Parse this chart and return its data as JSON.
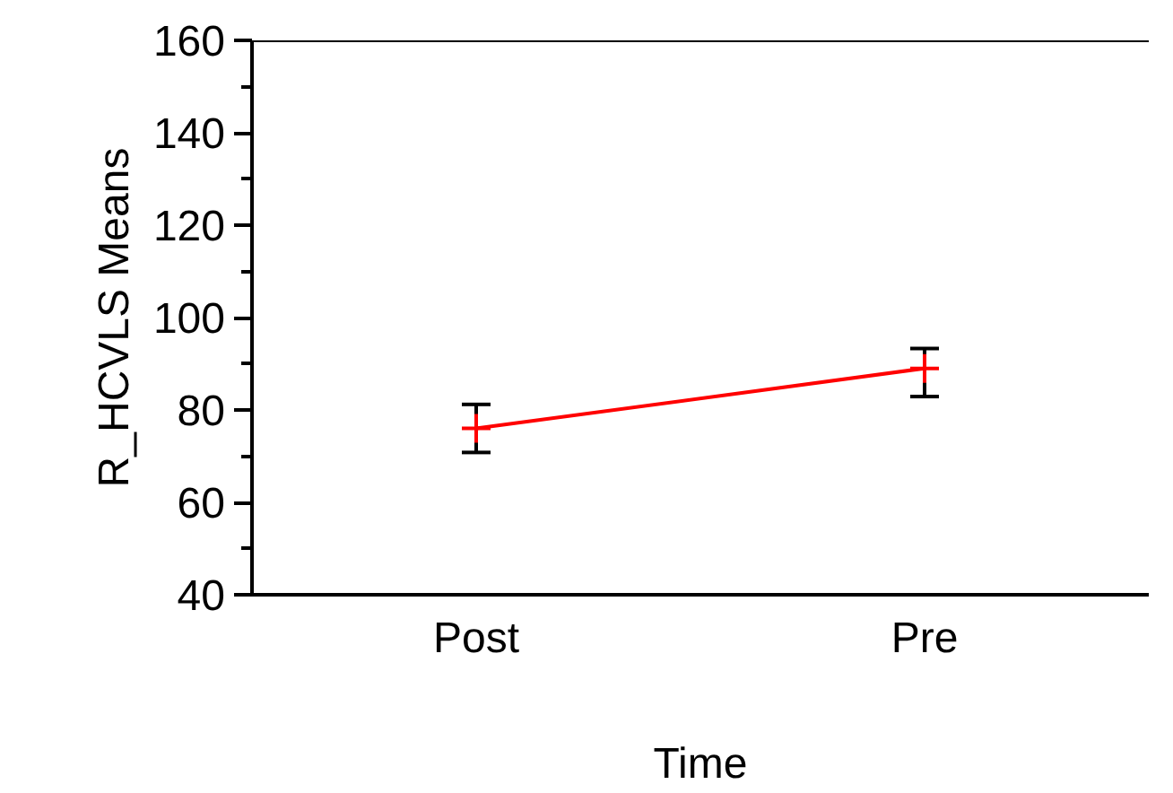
{
  "chart_data": {
    "type": "line",
    "xlabel": "Time",
    "ylabel": "R_HCVLS Means",
    "categories": [
      "Post",
      "Pre"
    ],
    "series": [
      {
        "color": "#ff0000",
        "values": [
          76,
          89
        ],
        "errors": [
          [
            70.8,
            81.2
          ],
          [
            82.9,
            93.3
          ]
        ]
      }
    ],
    "ylim": [
      40,
      160
    ],
    "yticks": [
      40,
      60,
      80,
      100,
      120,
      140,
      160
    ],
    "marker": "cross",
    "line_style": "solid",
    "grid": false
  }
}
